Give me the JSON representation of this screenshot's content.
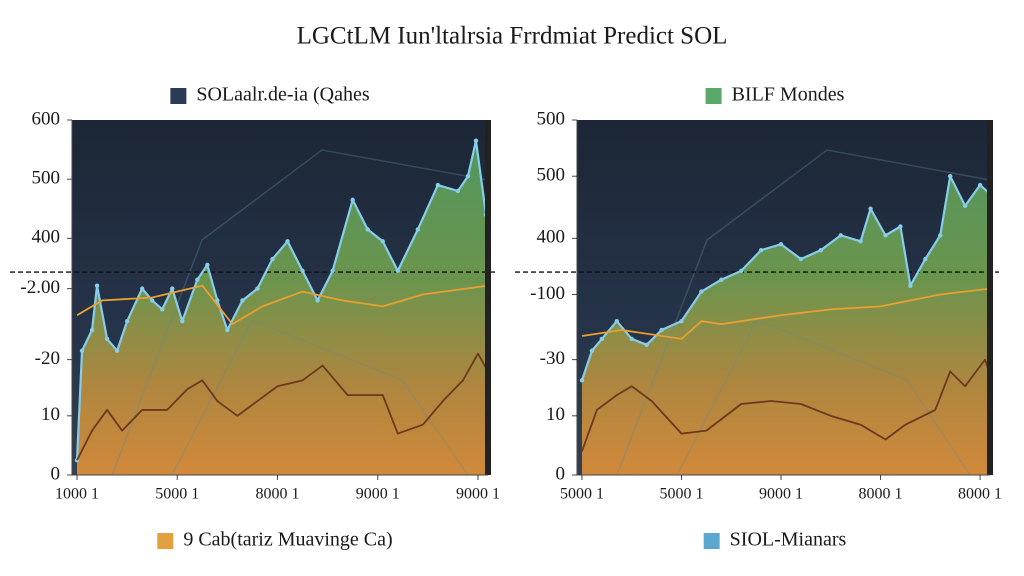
{
  "title": "LGCtLM Iun'ltalrsia Frrdmiat Predict SOL",
  "chart_data": [
    {
      "type": "line",
      "legend": [
        {
          "label": "SOLaalr.de-ia (Qahes",
          "color": "#2b3a55"
        },
        {
          "label": "9 Cab(tariz Muavinge Ca)",
          "color": "#e2a03e"
        }
      ],
      "xlim": [
        -0.05,
        4.1
      ],
      "ylim": [
        0,
        600
      ],
      "xticks": [
        {
          "value": 0,
          "label": "1000 1"
        },
        {
          "value": 1,
          "label": "5000 1"
        },
        {
          "value": 2,
          "label": "8000 1"
        },
        {
          "value": 3,
          "label": "9000 1"
        },
        {
          "value": 4,
          "label": "9000 1"
        }
      ],
      "yticks": [
        0,
        {
          "value": 100,
          "label": "10"
        },
        {
          "value": 195,
          "label": "-20"
        },
        {
          "value": 315,
          "label": "-2.00"
        },
        400,
        500,
        600
      ],
      "hline": 343,
      "series": [
        {
          "color": "#86cdea",
          "area": true,
          "x": [
            0,
            0.05,
            0.15,
            0.2,
            0.3,
            0.4,
            0.5,
            0.65,
            0.75,
            0.85,
            0.95,
            1.05,
            1.2,
            1.3,
            1.4,
            1.5,
            1.65,
            1.8,
            1.95,
            2.1,
            2.25,
            2.4,
            2.55,
            2.75,
            2.9,
            3.05,
            3.2,
            3.4,
            3.6,
            3.8,
            3.9,
            3.98,
            4.08
          ],
          "values": [
            25,
            210,
            245,
            320,
            230,
            210,
            260,
            315,
            295,
            280,
            315,
            260,
            330,
            355,
            295,
            245,
            295,
            315,
            365,
            395,
            345,
            295,
            345,
            465,
            415,
            395,
            345,
            415,
            490,
            480,
            505,
            565,
            440
          ]
        },
        {
          "color": "#e8a030",
          "area": false,
          "x": [
            0,
            0.25,
            0.75,
            1.25,
            1.55,
            1.85,
            2.25,
            2.65,
            3.05,
            3.45,
            4.1
          ],
          "values": [
            270,
            295,
            300,
            320,
            255,
            285,
            310,
            295,
            285,
            305,
            320
          ]
        },
        {
          "color": "#6b3a1e",
          "area": false,
          "x": [
            0,
            0.15,
            0.3,
            0.45,
            0.65,
            0.9,
            1.1,
            1.25,
            1.4,
            1.6,
            1.8,
            2.0,
            2.25,
            2.45,
            2.7,
            3.05,
            3.2,
            3.45,
            3.65,
            3.85,
            4.0,
            4.1
          ],
          "values": [
            25,
            75,
            110,
            75,
            110,
            110,
            145,
            160,
            125,
            100,
            125,
            150,
            160,
            185,
            135,
            135,
            70,
            85,
            125,
            160,
            205,
            175
          ]
        }
      ]
    },
    {
      "type": "line",
      "legend": [
        {
          "label": "BILF Mondes",
          "color": "#5aa86a"
        },
        {
          "label": "SIOL-Mianars",
          "color": "#5aa8d0"
        }
      ],
      "xlim": [
        -0.05,
        4.1
      ],
      "ylim": [
        0,
        600
      ],
      "xticks": [
        {
          "value": 0,
          "label": "5000 1"
        },
        {
          "value": 1,
          "label": "5000 1"
        },
        {
          "value": 2,
          "label": "9000 1"
        },
        {
          "value": 3,
          "label": "8000 1"
        },
        {
          "value": 4,
          "label": "8000 1"
        }
      ],
      "yticks": [
        0,
        {
          "value": 100,
          "label": "10"
        },
        {
          "value": 195,
          "label": "-30"
        },
        {
          "value": 305,
          "label": "-100"
        },
        400,
        {
          "value": 505,
          "label": "500"
        },
        {
          "value": 600,
          "label": "500"
        }
      ],
      "hline": 343,
      "series": [
        {
          "color": "#86cdea",
          "area": true,
          "x": [
            0,
            0.1,
            0.2,
            0.35,
            0.5,
            0.65,
            0.8,
            1.0,
            1.2,
            1.4,
            1.6,
            1.8,
            2.0,
            2.2,
            2.4,
            2.6,
            2.8,
            2.9,
            3.05,
            3.2,
            3.3,
            3.45,
            3.6,
            3.7,
            3.85,
            4.0,
            4.1
          ],
          "values": [
            160,
            210,
            230,
            260,
            230,
            220,
            245,
            260,
            310,
            330,
            345,
            380,
            390,
            365,
            380,
            405,
            395,
            450,
            405,
            420,
            320,
            365,
            405,
            505,
            455,
            490,
            475
          ]
        },
        {
          "color": "#e8a030",
          "area": false,
          "x": [
            0,
            0.4,
            1.0,
            1.2,
            1.4,
            2.0,
            2.5,
            3.0,
            3.6,
            4.1
          ],
          "values": [
            235,
            245,
            230,
            260,
            255,
            270,
            280,
            285,
            305,
            315
          ]
        },
        {
          "color": "#6b3a1e",
          "area": false,
          "x": [
            0,
            0.15,
            0.35,
            0.5,
            0.7,
            1.0,
            1.25,
            1.6,
            1.9,
            2.2,
            2.5,
            2.8,
            3.05,
            3.25,
            3.55,
            3.7,
            3.85,
            4.05,
            4.1
          ],
          "values": [
            40,
            110,
            135,
            150,
            125,
            70,
            75,
            120,
            125,
            120,
            100,
            85,
            60,
            85,
            110,
            175,
            150,
            195,
            170
          ]
        }
      ]
    }
  ]
}
